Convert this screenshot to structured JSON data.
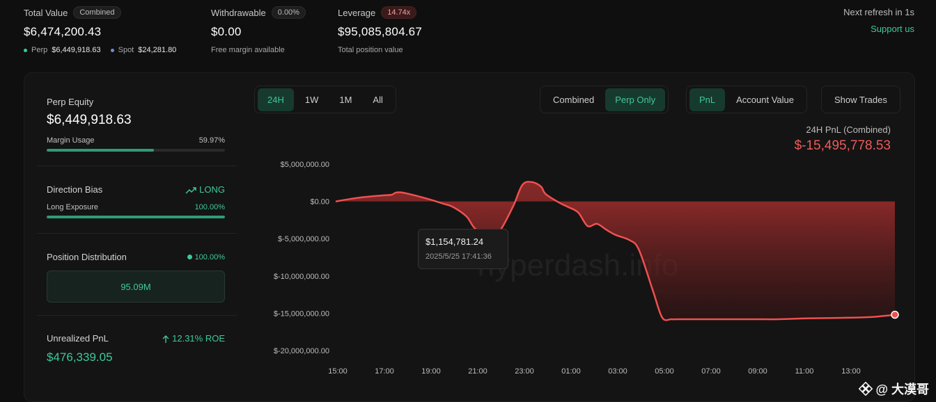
{
  "summary": {
    "total_value": {
      "label": "Total Value",
      "badge": "Combined",
      "value": "$6,474,200.43",
      "perp_label": "Perp",
      "perp_value": "$6,449,918.63",
      "spot_label": "Spot",
      "spot_value": "$24,281.80"
    },
    "withdrawable": {
      "label": "Withdrawable",
      "badge": "0.00%",
      "value": "$0.00",
      "sub": "Free margin available"
    },
    "leverage": {
      "label": "Leverage",
      "badge": "14.74x",
      "value": "$95,085,804.67",
      "sub": "Total position value"
    },
    "refresh": "Next refresh in 1s",
    "support": "Support us"
  },
  "left": {
    "perp_equity": {
      "label": "Perp Equity",
      "value": "$6,449,918.63",
      "margin_label": "Margin Usage",
      "margin_value": "59.97%",
      "margin_fraction": 0.5997
    },
    "direction": {
      "label": "Direction Bias",
      "value": "LONG",
      "exposure_label": "Long Exposure",
      "exposure_value": "100.00%",
      "exposure_fraction": 1.0
    },
    "distribution": {
      "label": "Position Distribution",
      "value": "100.00%",
      "box_value": "95.09M"
    },
    "unrealized": {
      "label": "Unrealized PnL",
      "roe": "12.31% ROE",
      "value": "$476,339.05"
    }
  },
  "tabs": {
    "range": [
      "24H",
      "1W",
      "1M",
      "All"
    ],
    "range_active": "24H",
    "mode": [
      "Combined",
      "Perp Only"
    ],
    "mode_active": "Perp Only",
    "metric": [
      "PnL",
      "Account Value"
    ],
    "metric_active": "PnL",
    "show_trades": "Show Trades"
  },
  "pnl_header": {
    "label": "24H PnL (Combined)",
    "value": "$-15,495,778.53"
  },
  "tooltip": {
    "value": "$1,154,781.24",
    "date": "2025/5/25 17:41:36"
  },
  "watermark": "hyperdash.info",
  "corner_mark": "@ 大漠哥",
  "colors": {
    "accent_green": "#3ec99a",
    "loss_red": "#ef5a5a",
    "spot_blue": "#6a8fd8"
  },
  "chart_data": {
    "type": "area",
    "x_ticks": [
      "15:00",
      "17:00",
      "19:00",
      "21:00",
      "23:00",
      "01:00",
      "03:00",
      "05:00",
      "07:00",
      "09:00",
      "11:00",
      "13:00"
    ],
    "y_ticks": [
      "$5,000,000.00",
      "$0.00",
      "$-5,000,000.00",
      "$-10,000,000.00",
      "$-15,000,000.00",
      "$-20,000,000.00"
    ],
    "y_tick_values": [
      5000000,
      0,
      -5000000,
      -10000000,
      -15000000,
      -20000000
    ],
    "ylim": [
      -20000000,
      5000000
    ],
    "xlim": [
      0,
      24
    ],
    "series": [
      {
        "x": [
          0,
          1,
          2,
          2.4,
          2.6,
          3,
          4,
          4.6,
          5,
          5.6,
          6,
          6.6,
          7,
          7.6,
          8,
          8.4,
          8.8,
          9,
          9.6,
          10,
          10.4,
          10.8,
          11.2,
          11.6,
          12,
          12.6,
          13,
          13.6,
          14,
          14.4,
          14.8,
          15,
          15.2,
          15.4,
          15.6,
          16,
          17,
          18,
          19,
          20,
          21,
          22,
          23,
          23.97
        ],
        "y": [
          0,
          500000,
          800000,
          900000,
          1200000,
          1100000,
          300000,
          -300000,
          -700000,
          -2000000,
          -3700000,
          -4200000,
          -4100000,
          -700000,
          2200000,
          2600000,
          2000000,
          1000000,
          -200000,
          -800000,
          -1500000,
          -3300000,
          -3000000,
          -3800000,
          -4500000,
          -5200000,
          -6500000,
          -12000000,
          -15600000,
          -15800000,
          -15800000,
          -15800000,
          -15800000,
          -15800000,
          -15800000,
          -15800000,
          -15800000,
          -15800000,
          -15800000,
          -15700000,
          -15650000,
          -15600000,
          -15500000,
          -15200000
        ]
      }
    ]
  }
}
